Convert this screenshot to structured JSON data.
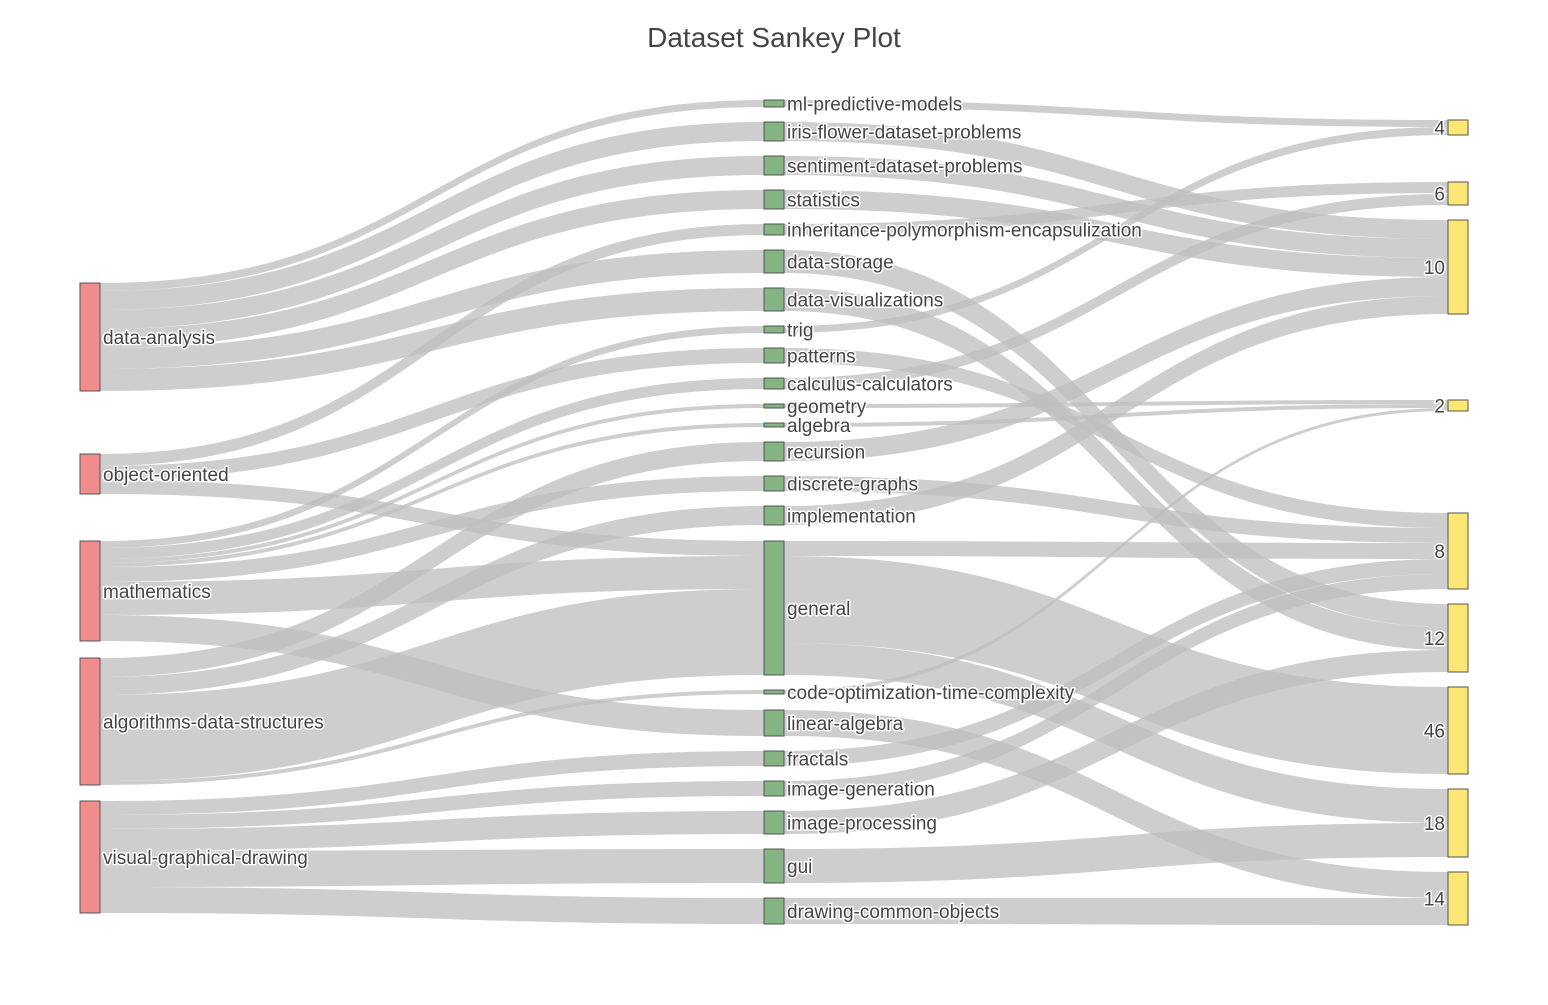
{
  "chart_data": {
    "type": "sankey",
    "title": "Dataset Sankey Plot",
    "colors": {
      "source": "#f08c8c",
      "category": "#84b484",
      "target": "#fce774",
      "link": "#bdbdbd"
    },
    "columns": [
      {
        "name": "source",
        "nodes": [
          {
            "label": "data-analysis",
            "y0": 283,
            "y1": 391
          },
          {
            "label": "object-oriented",
            "y0": 454,
            "y1": 494
          },
          {
            "label": "mathematics",
            "y0": 541,
            "y1": 641
          },
          {
            "label": "algorithms-data-structures",
            "y0": 658,
            "y1": 785
          },
          {
            "label": "visual-graphical-drawing",
            "y0": 801,
            "y1": 913
          }
        ]
      },
      {
        "name": "category",
        "nodes": [
          {
            "label": "ml-predictive-models",
            "y0": 100,
            "y1": 107
          },
          {
            "label": "iris-flower-dataset-problems",
            "y0": 122,
            "y1": 141
          },
          {
            "label": "sentiment-dataset-problems",
            "y0": 156,
            "y1": 175
          },
          {
            "label": "statistics",
            "y0": 190,
            "y1": 209
          },
          {
            "label": "inheritance-polymorphism-encapsulization",
            "y0": 224,
            "y1": 235
          },
          {
            "label": "data-storage",
            "y0": 250,
            "y1": 273
          },
          {
            "label": "data-visualizations",
            "y0": 288,
            "y1": 311
          },
          {
            "label": "trig",
            "y0": 326,
            "y1": 333
          },
          {
            "label": "patterns",
            "y0": 348,
            "y1": 363
          },
          {
            "label": "calculus-calculators",
            "y0": 378,
            "y1": 389
          },
          {
            "label": "geometry",
            "y0": 404,
            "y1": 408
          },
          {
            "label": "algebra",
            "y0": 423,
            "y1": 427
          },
          {
            "label": "recursion",
            "y0": 442,
            "y1": 461
          },
          {
            "label": "discrete-graphs",
            "y0": 476,
            "y1": 491
          },
          {
            "label": "implementation",
            "y0": 506,
            "y1": 525
          },
          {
            "label": "general",
            "y0": 541,
            "y1": 675
          },
          {
            "label": "code-optimization-time-complexity",
            "y0": 690,
            "y1": 694
          },
          {
            "label": "linear-algebra",
            "y0": 710,
            "y1": 736
          },
          {
            "label": "fractals",
            "y0": 751,
            "y1": 766
          },
          {
            "label": "image-generation",
            "y0": 781,
            "y1": 796
          },
          {
            "label": "image-processing",
            "y0": 811,
            "y1": 834
          },
          {
            "label": "gui",
            "y0": 849,
            "y1": 883
          },
          {
            "label": "drawing-common-objects",
            "y0": 898,
            "y1": 924
          }
        ]
      },
      {
        "name": "target",
        "nodes": [
          {
            "label": "4",
            "y0": 120,
            "y1": 135
          },
          {
            "label": "6",
            "y0": 182,
            "y1": 205
          },
          {
            "label": "10",
            "y0": 220,
            "y1": 314
          },
          {
            "label": "2",
            "y0": 400,
            "y1": 411
          },
          {
            "label": "8",
            "y0": 513,
            "y1": 589
          },
          {
            "label": "12",
            "y0": 604,
            "y1": 672
          },
          {
            "label": "46",
            "y0": 687,
            "y1": 774
          },
          {
            "label": "18",
            "y0": 789,
            "y1": 857
          },
          {
            "label": "14",
            "y0": 872,
            "y1": 925
          }
        ]
      }
    ],
    "links": [
      {
        "from": "data-analysis",
        "to": "ml-predictive-models",
        "s0": 283,
        "s1": 291,
        "t0": 100,
        "t1": 107
      },
      {
        "from": "data-analysis",
        "to": "iris-flower-dataset-problems",
        "s0": 291,
        "s1": 310,
        "t0": 122,
        "t1": 141
      },
      {
        "from": "data-analysis",
        "to": "sentiment-dataset-problems",
        "s0": 310,
        "s1": 329,
        "t0": 156,
        "t1": 175
      },
      {
        "from": "data-analysis",
        "to": "statistics",
        "s0": 329,
        "s1": 348,
        "t0": 190,
        "t1": 209
      },
      {
        "from": "data-analysis",
        "to": "data-storage",
        "s0": 348,
        "s1": 369,
        "t0": 250,
        "t1": 273
      },
      {
        "from": "data-analysis",
        "to": "data-visualizations",
        "s0": 369,
        "s1": 391,
        "t0": 288,
        "t1": 311
      },
      {
        "from": "object-oriented",
        "to": "inheritance-polymorphism-encapsulization",
        "s0": 454,
        "s1": 466,
        "t0": 224,
        "t1": 235
      },
      {
        "from": "object-oriented",
        "to": "patterns",
        "s0": 466,
        "s1": 480,
        "t0": 348,
        "t1": 363
      },
      {
        "from": "object-oriented",
        "to": "general",
        "s0": 480,
        "s1": 494,
        "t0": 541,
        "t1": 556
      },
      {
        "from": "mathematics",
        "to": "trig",
        "s0": 541,
        "s1": 548,
        "t0": 326,
        "t1": 333
      },
      {
        "from": "mathematics",
        "to": "calculus-calculators",
        "s0": 548,
        "s1": 559,
        "t0": 378,
        "t1": 389
      },
      {
        "from": "mathematics",
        "to": "geometry",
        "s0": 559,
        "s1": 563,
        "t0": 404,
        "t1": 408
      },
      {
        "from": "mathematics",
        "to": "algebra",
        "s0": 563,
        "s1": 567,
        "t0": 423,
        "t1": 427
      },
      {
        "from": "mathematics",
        "to": "discrete-graphs",
        "s0": 567,
        "s1": 582,
        "t0": 476,
        "t1": 491
      },
      {
        "from": "mathematics",
        "to": "general",
        "s0": 582,
        "s1": 615,
        "t0": 556,
        "t1": 589
      },
      {
        "from": "mathematics",
        "to": "linear-algebra",
        "s0": 615,
        "s1": 641,
        "t0": 710,
        "t1": 736
      },
      {
        "from": "algorithms-data-structures",
        "to": "recursion",
        "s0": 658,
        "s1": 677,
        "t0": 442,
        "t1": 461
      },
      {
        "from": "algorithms-data-structures",
        "to": "implementation",
        "s0": 677,
        "s1": 695,
        "t0": 506,
        "t1": 525
      },
      {
        "from": "algorithms-data-structures",
        "to": "general",
        "s0": 695,
        "s1": 781,
        "t0": 589,
        "t1": 675
      },
      {
        "from": "algorithms-data-structures",
        "to": "code-optimization-time-complexity",
        "s0": 781,
        "s1": 785,
        "t0": 690,
        "t1": 694
      },
      {
        "from": "visual-graphical-drawing",
        "to": "fractals",
        "s0": 801,
        "s1": 815,
        "t0": 751,
        "t1": 766
      },
      {
        "from": "visual-graphical-drawing",
        "to": "image-generation",
        "s0": 815,
        "s1": 829,
        "t0": 781,
        "t1": 796
      },
      {
        "from": "visual-graphical-drawing",
        "to": "image-processing",
        "s0": 829,
        "s1": 851,
        "t0": 811,
        "t1": 834
      },
      {
        "from": "visual-graphical-drawing",
        "to": "gui",
        "s0": 851,
        "s1": 887,
        "t0": 849,
        "t1": 883
      },
      {
        "from": "visual-graphical-drawing",
        "to": "drawing-common-objects",
        "s0": 887,
        "s1": 913,
        "t0": 898,
        "t1": 924
      },
      {
        "from": "ml-predictive-models",
        "to": "4",
        "s0": 100,
        "s1": 107,
        "t0": 120,
        "t1": 127
      },
      {
        "from": "trig",
        "to": "4",
        "s0": 326,
        "s1": 333,
        "t0": 127,
        "t1": 135
      },
      {
        "from": "inheritance-polymorphism-encapsulization",
        "to": "6",
        "s0": 224,
        "s1": 235,
        "t0": 182,
        "t1": 193
      },
      {
        "from": "calculus-calculators",
        "to": "6",
        "s0": 378,
        "s1": 389,
        "t0": 194,
        "t1": 205
      },
      {
        "from": "iris-flower-dataset-problems",
        "to": "10",
        "s0": 122,
        "s1": 141,
        "t0": 220,
        "t1": 239
      },
      {
        "from": "sentiment-dataset-problems",
        "to": "10",
        "s0": 156,
        "s1": 175,
        "t0": 239,
        "t1": 258
      },
      {
        "from": "statistics",
        "to": "10",
        "s0": 190,
        "s1": 209,
        "t0": 258,
        "t1": 277
      },
      {
        "from": "recursion",
        "to": "10",
        "s0": 442,
        "s1": 461,
        "t0": 277,
        "t1": 296
      },
      {
        "from": "implementation",
        "to": "10",
        "s0": 506,
        "s1": 525,
        "t0": 296,
        "t1": 314
      },
      {
        "from": "geometry",
        "to": "2",
        "s0": 404,
        "s1": 408,
        "t0": 400,
        "t1": 404
      },
      {
        "from": "algebra",
        "to": "2",
        "s0": 423,
        "s1": 427,
        "t0": 404,
        "t1": 408
      },
      {
        "from": "code-optimization-time-complexity",
        "to": "2",
        "s0": 690,
        "s1": 694,
        "t0": 408,
        "t1": 411
      },
      {
        "from": "patterns",
        "to": "8",
        "s0": 348,
        "s1": 363,
        "t0": 513,
        "t1": 528
      },
      {
        "from": "discrete-graphs",
        "to": "8",
        "s0": 476,
        "s1": 491,
        "t0": 528,
        "t1": 543
      },
      {
        "from": "general",
        "to": "8",
        "s0": 541,
        "s1": 556,
        "t0": 543,
        "t1": 559
      },
      {
        "from": "fractals",
        "to": "8",
        "s0": 751,
        "s1": 766,
        "t0": 559,
        "t1": 574
      },
      {
        "from": "image-generation",
        "to": "8",
        "s0": 781,
        "s1": 796,
        "t0": 574,
        "t1": 589
      },
      {
        "from": "data-storage",
        "to": "12",
        "s0": 250,
        "s1": 273,
        "t0": 604,
        "t1": 627
      },
      {
        "from": "data-visualizations",
        "to": "12",
        "s0": 288,
        "s1": 311,
        "t0": 627,
        "t1": 650
      },
      {
        "from": "image-processing",
        "to": "12",
        "s0": 811,
        "s1": 834,
        "t0": 650,
        "t1": 672
      },
      {
        "from": "general",
        "to": "46",
        "s0": 556,
        "s1": 643,
        "t0": 687,
        "t1": 774
      },
      {
        "from": "general",
        "to": "18",
        "s0": 643,
        "s1": 675,
        "t0": 789,
        "t1": 823
      },
      {
        "from": "gui",
        "to": "18",
        "s0": 849,
        "s1": 883,
        "t0": 823,
        "t1": 857
      },
      {
        "from": "linear-algebra",
        "to": "14",
        "s0": 710,
        "s1": 736,
        "t0": 872,
        "t1": 898
      },
      {
        "from": "drawing-common-objects",
        "to": "14",
        "s0": 898,
        "s1": 924,
        "t0": 898,
        "t1": 925
      }
    ]
  }
}
